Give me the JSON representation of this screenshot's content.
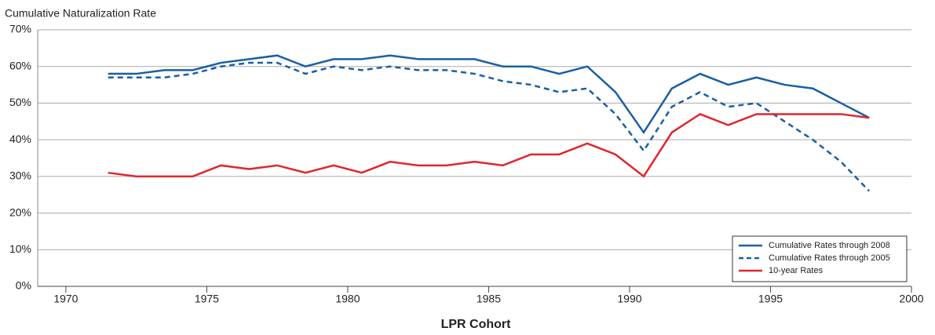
{
  "chart_data": {
    "type": "line",
    "title": "Cumulative Naturalization Rate",
    "x_label": "LPR Cohort",
    "x": [
      1971.5,
      1972.5,
      1973.5,
      1974.5,
      1975.5,
      1976.5,
      1977.5,
      1978.5,
      1979.5,
      1980.5,
      1981.5,
      1982.5,
      1983.5,
      1984.5,
      1985.5,
      1986.5,
      1987.5,
      1988.5,
      1989.5,
      1990.5,
      1991.5,
      1992.5,
      1993.5,
      1994.5,
      1995.5,
      1996.5,
      1997.5,
      1998.5
    ],
    "series": [
      {
        "name": "Cumulative Rates through 2008",
        "color": "#1a5fa3",
        "dashed": false,
        "values": [
          58,
          58,
          59,
          59,
          61,
          62,
          63,
          60,
          62,
          62,
          63,
          62,
          62,
          62,
          60,
          60,
          58,
          60,
          53,
          42,
          54,
          58,
          55,
          57,
          55,
          54,
          50,
          46
        ]
      },
      {
        "name": "Cumulative Rates through 2005",
        "color": "#1a5fa3",
        "dashed": true,
        "values": [
          57,
          57,
          57,
          58,
          60,
          61,
          61,
          58,
          60,
          59,
          60,
          59,
          59,
          58,
          56,
          55,
          53,
          54,
          47,
          37,
          49,
          53,
          49,
          50,
          45,
          40,
          34,
          26
        ]
      },
      {
        "name": "10-year Rates",
        "color": "#e0262e",
        "dashed": false,
        "values": [
          31,
          30,
          30,
          30,
          33,
          32,
          33,
          31,
          33,
          31,
          34,
          33,
          33,
          34,
          33,
          36,
          36,
          39,
          36,
          30,
          42,
          47,
          44,
          47,
          47,
          47,
          47,
          46
        ]
      }
    ],
    "xlim": [
      1969,
      2000
    ],
    "xticks": [
      1970,
      1975,
      1980,
      1985,
      1990,
      1995,
      2000
    ],
    "ylim": [
      0,
      70
    ],
    "yticks": [
      {
        "value": 0,
        "label": "0%"
      },
      {
        "value": 10,
        "label": "10%"
      },
      {
        "value": 20,
        "label": "20%"
      },
      {
        "value": 30,
        "label": "30%"
      },
      {
        "value": 40,
        "label": "40%"
      },
      {
        "value": 50,
        "label": "50%"
      },
      {
        "value": 60,
        "label": "60%"
      },
      {
        "value": 70,
        "label": "70%"
      }
    ],
    "grid": true,
    "legend": "lower-right"
  }
}
